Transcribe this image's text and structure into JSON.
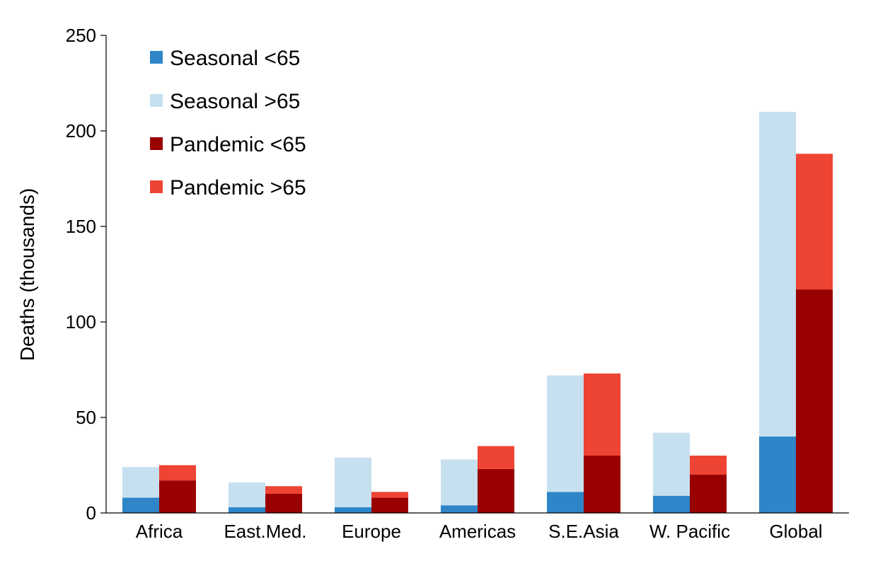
{
  "chart_data": {
    "type": "bar",
    "stacked": true,
    "grouped": true,
    "categories": [
      "Africa",
      "East.Med.",
      "Europe",
      "Americas",
      "S.E.Asia",
      "W. Pacific",
      "Global"
    ],
    "ylabel": "Deaths (thousands)",
    "xlabel": "",
    "ylim": [
      0,
      250
    ],
    "yticks": [
      0,
      50,
      100,
      150,
      200,
      250
    ],
    "grid": false,
    "legend_position": "top-left",
    "groups": [
      {
        "id": "seasonal",
        "series": [
          {
            "name": "Seasonal <65",
            "color": "#2E86C8",
            "values": [
              8,
              3,
              3,
              4,
              11,
              9,
              40
            ]
          },
          {
            "name": "Seasonal >65",
            "color": "#C6E0F0",
            "values": [
              16,
              13,
              26,
              24,
              61,
              33,
              170
            ]
          }
        ]
      },
      {
        "id": "pandemic",
        "series": [
          {
            "name": "Pandemic <65",
            "color": "#990000",
            "values": [
              17,
              10,
              8,
              23,
              30,
              20,
              117
            ]
          },
          {
            "name": "Pandemic >65",
            "color": "#EE4433",
            "values": [
              8,
              4,
              3,
              12,
              43,
              10,
              71
            ]
          }
        ]
      }
    ]
  }
}
